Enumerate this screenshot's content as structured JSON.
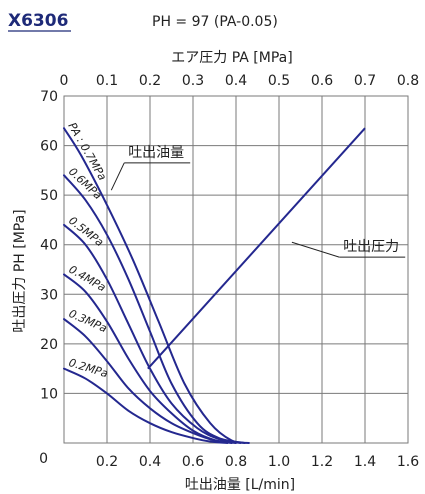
{
  "header": {
    "model": "X6306",
    "formula": "PH = 97 (PA-0.05)"
  },
  "chart_data": {
    "type": "line",
    "top_axis": {
      "label": "エア圧力 PA [MPa]",
      "range": [
        0,
        0.8
      ],
      "ticks": [
        "0",
        "0.1",
        "0.2",
        "0.3",
        "0.4",
        "0.5",
        "0.6",
        "0.7",
        "0.8"
      ]
    },
    "xlabel": "吐出油量 [L/min]",
    "xlim": [
      0,
      1.6
    ],
    "x_ticks": [
      "0.2",
      "0.4",
      "0.6",
      "0.8",
      "1.0",
      "1.2",
      "1.4",
      "1.6"
    ],
    "ylabel": "吐出圧力 PH [MPa]",
    "ylim": [
      0,
      70
    ],
    "y_ticks": [
      "0",
      "10",
      "20",
      "30",
      "40",
      "50",
      "60",
      "70"
    ],
    "grid": true,
    "colors": {
      "grid": "#7a7a7a",
      "series": "#24288f",
      "plot_bg": "#ffffff",
      "model_text": "#1e2a78"
    },
    "series": [
      {
        "name": "PA : 0.7MPa",
        "x": [
          0,
          0.08,
          0.2,
          0.32,
          0.44,
          0.56,
          0.68,
          0.78,
          0.86
        ],
        "y": [
          63.5,
          58,
          48,
          37,
          24.5,
          12,
          4,
          0.5,
          0
        ]
      },
      {
        "name": "0.6MPa",
        "x": [
          0,
          0.1,
          0.2,
          0.3,
          0.4,
          0.5,
          0.62,
          0.72,
          0.84
        ],
        "y": [
          54,
          49,
          42,
          33,
          22.5,
          12,
          4,
          1,
          0
        ]
      },
      {
        "name": "0.5MPa",
        "x": [
          0,
          0.1,
          0.2,
          0.3,
          0.4,
          0.5,
          0.62,
          0.72,
          0.82
        ],
        "y": [
          44,
          40,
          33,
          24,
          15,
          8,
          3,
          0.8,
          0
        ]
      },
      {
        "name": "0.4MPa",
        "x": [
          0,
          0.1,
          0.2,
          0.3,
          0.4,
          0.5,
          0.6,
          0.7,
          0.8
        ],
        "y": [
          34,
          30.5,
          24.5,
          17,
          10.5,
          6,
          2.5,
          0.6,
          0
        ]
      },
      {
        "name": "0.3MPa",
        "x": [
          0,
          0.1,
          0.2,
          0.3,
          0.4,
          0.5,
          0.6,
          0.7,
          0.78
        ],
        "y": [
          25,
          21.5,
          16.5,
          11,
          7,
          4,
          2,
          0.5,
          0
        ]
      },
      {
        "name": "0.2MPa",
        "x": [
          0,
          0.1,
          0.2,
          0.3,
          0.4,
          0.5,
          0.6,
          0.68,
          0.76
        ],
        "y": [
          15,
          13,
          10,
          6.5,
          4,
          2.2,
          1,
          0.3,
          0
        ]
      },
      {
        "name": "吐出圧力",
        "axis": "top",
        "x": [
          0.195,
          0.7
        ],
        "y": [
          15,
          63.5
        ]
      }
    ],
    "annotations": [
      {
        "text": "吐出油量",
        "anchor": [
          0.28,
          56.5
        ],
        "points_to": [
          0.22,
          51
        ]
      },
      {
        "text": "吐出圧力",
        "anchor": [
          1.28,
          37.5
        ],
        "points_to": [
          0.53,
          40.5
        ],
        "axis": "top"
      }
    ]
  }
}
